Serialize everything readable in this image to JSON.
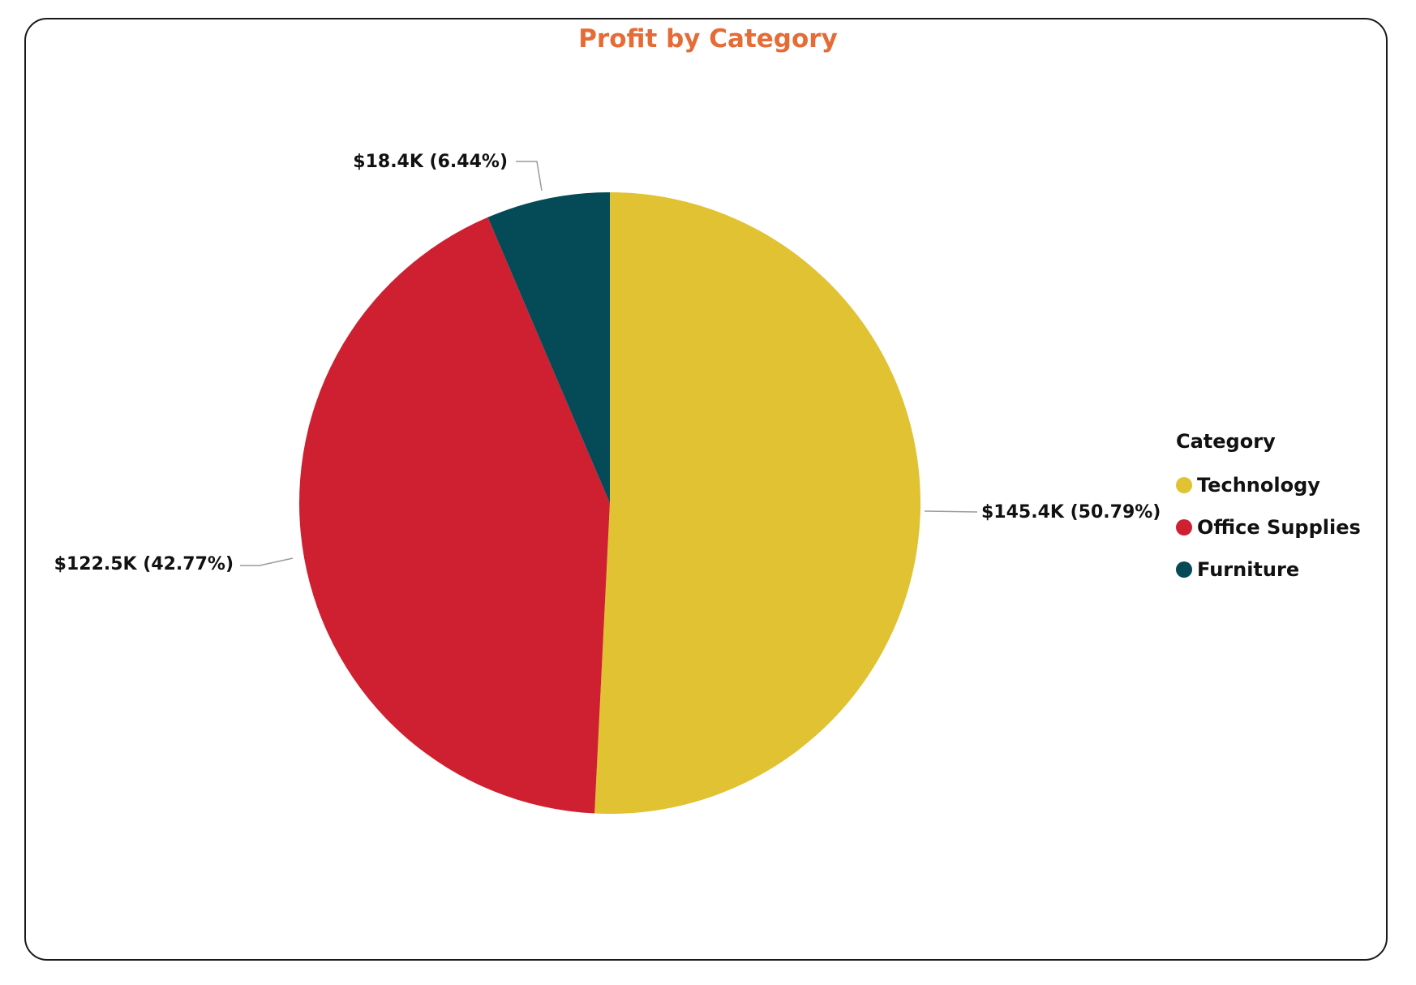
{
  "chart_data": {
    "type": "pie",
    "title": "Profit by Category",
    "legend_title": "Category",
    "legend_position": "right",
    "categories": [
      "Technology",
      "Office Supplies",
      "Furniture"
    ],
    "values": [
      145.4,
      122.5,
      18.4
    ],
    "percentages": [
      50.79,
      42.77,
      6.44
    ],
    "data_labels": [
      "$145.4K (50.79%)",
      "$122.5K (42.77%)",
      "$18.4K (6.44%)"
    ],
    "colors": [
      "#E0C232",
      "#CE2030",
      "#044A57"
    ],
    "title_color": "#E66C37"
  }
}
